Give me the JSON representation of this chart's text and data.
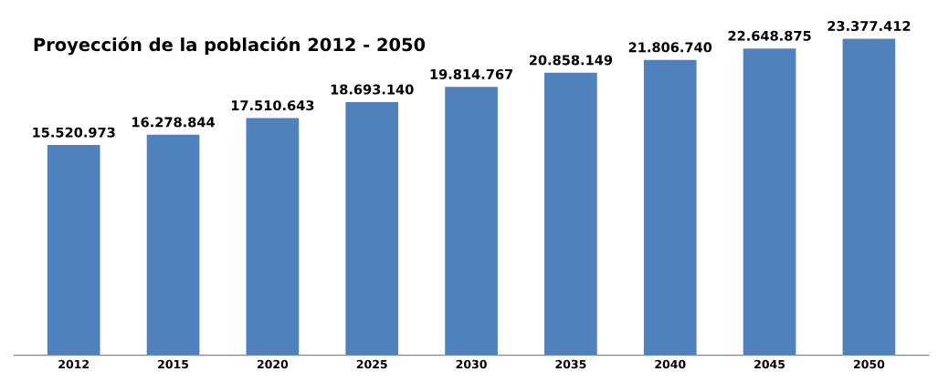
{
  "chart_data": {
    "type": "bar",
    "title": "Proyección de la población 2012 - 2050",
    "categories": [
      "2012",
      "2015",
      "2020",
      "2025",
      "2030",
      "2035",
      "2040",
      "2045",
      "2050"
    ],
    "values": [
      15520973,
      16278844,
      17510643,
      18693140,
      19814767,
      20858149,
      21806740,
      22648875,
      23377412
    ],
    "value_labels": [
      "15.520.973",
      "16.278.844",
      "17.510.643",
      "18.693.140",
      "19.814.767",
      "20.858.149",
      "21.806.740",
      "22.648.875",
      "23.377.412"
    ],
    "color": "#4f81bd"
  }
}
